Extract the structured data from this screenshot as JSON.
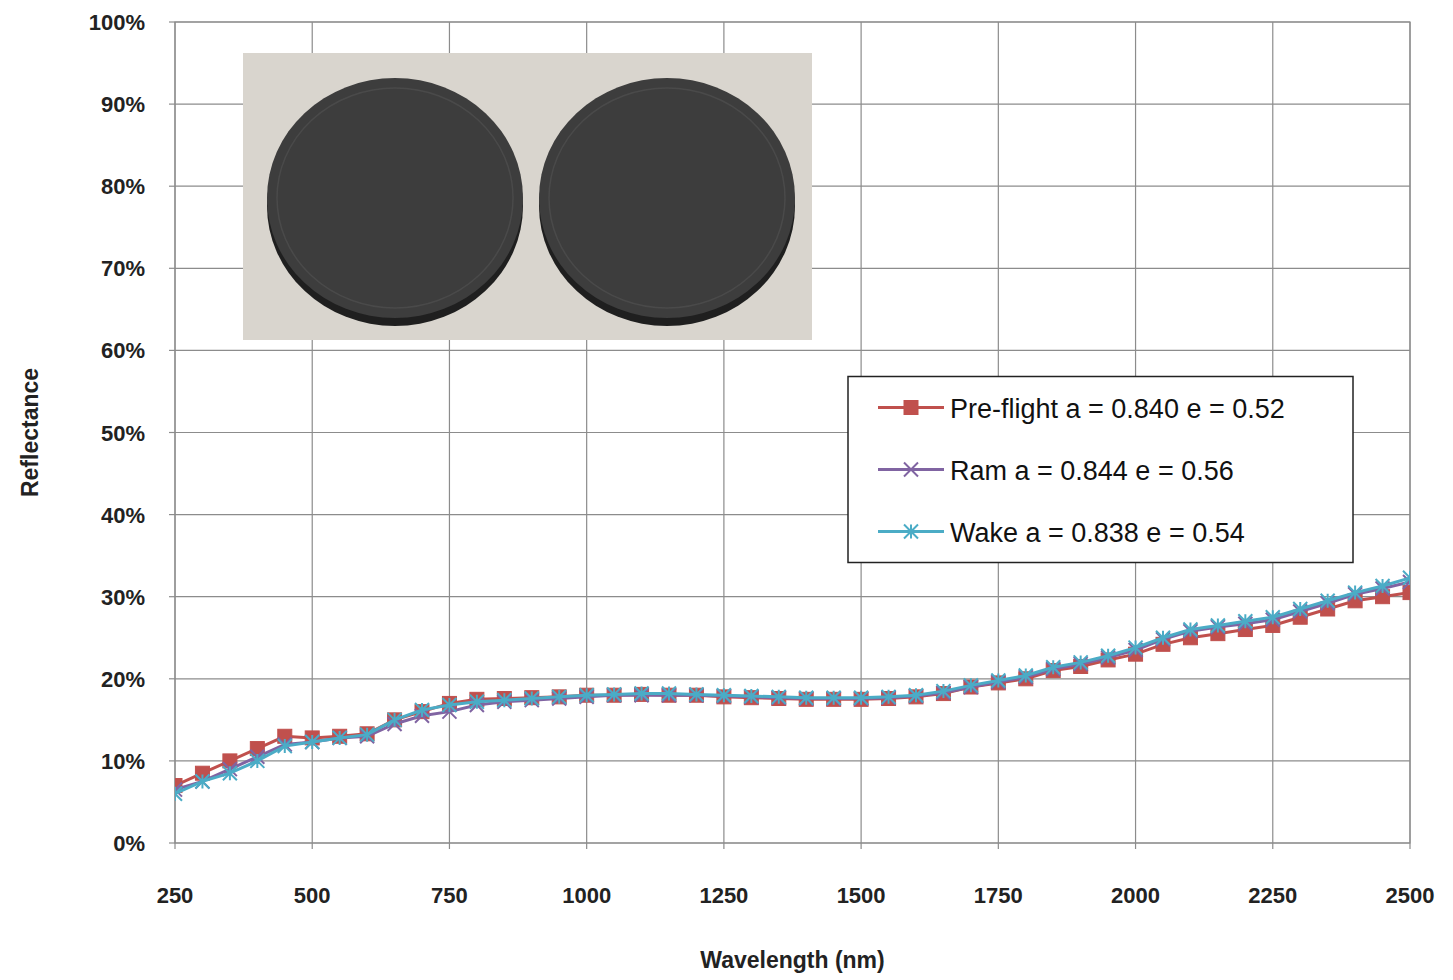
{
  "chart_data": {
    "type": "line",
    "x_label": "Wavelength (nm)",
    "y_label": "Reflectance",
    "xlim": [
      250,
      2500
    ],
    "xticks": [
      250,
      500,
      750,
      1000,
      1250,
      1500,
      1750,
      2000,
      2250,
      2500
    ],
    "ylim": [
      0,
      100
    ],
    "yticks": [
      {
        "value": 0,
        "label": "0%"
      },
      {
        "value": 10,
        "label": "10%"
      },
      {
        "value": 20,
        "label": "20%"
      },
      {
        "value": 30,
        "label": "30%"
      },
      {
        "value": 40,
        "label": "40%"
      },
      {
        "value": 50,
        "label": "50%"
      },
      {
        "value": 60,
        "label": "60%"
      },
      {
        "value": 70,
        "label": "70%"
      },
      {
        "value": 80,
        "label": "80%"
      },
      {
        "value": 90,
        "label": "90%"
      },
      {
        "value": 100,
        "label": "100%"
      }
    ],
    "grid": true,
    "legend": "right",
    "x": [
      250,
      300,
      350,
      400,
      450,
      500,
      550,
      600,
      650,
      700,
      750,
      800,
      850,
      900,
      950,
      1000,
      1050,
      1100,
      1150,
      1200,
      1250,
      1300,
      1350,
      1400,
      1450,
      1500,
      1550,
      1600,
      1650,
      1700,
      1750,
      1800,
      1850,
      1900,
      1950,
      2000,
      2050,
      2100,
      2150,
      2200,
      2250,
      2300,
      2350,
      2400,
      2450,
      2500
    ],
    "series": [
      {
        "name": "Pre-flight a = 0.840 e = 0.52",
        "color": "#c0504d",
        "marker": "square",
        "values": [
          7,
          8.5,
          10,
          11.5,
          13,
          12.8,
          13,
          13.3,
          15,
          16,
          17,
          17.5,
          17.6,
          17.7,
          17.8,
          18,
          18,
          18.1,
          18,
          18,
          17.8,
          17.7,
          17.6,
          17.5,
          17.5,
          17.5,
          17.6,
          17.8,
          18.2,
          19,
          19.5,
          20,
          21,
          21.5,
          22.3,
          23,
          24.2,
          25,
          25.5,
          26,
          26.5,
          27.5,
          28.5,
          29.5,
          30,
          30.5
        ]
      },
      {
        "name": "Ram a = 0.844 e = 0.56",
        "color": "#8064a2",
        "marker": "x",
        "values": [
          6.5,
          7.5,
          9,
          10.5,
          12,
          12.3,
          12.8,
          13,
          14.5,
          15.5,
          16,
          16.8,
          17.2,
          17.4,
          17.6,
          17.8,
          18,
          18,
          18,
          18,
          17.9,
          17.8,
          17.7,
          17.6,
          17.6,
          17.6,
          17.7,
          17.9,
          18.3,
          19,
          19.6,
          20.2,
          21.2,
          21.8,
          22.6,
          23.5,
          24.8,
          25.8,
          26.3,
          26.7,
          27.2,
          28.2,
          29.2,
          30.3,
          31,
          31.8
        ]
      },
      {
        "name": "Wake a = 0.838 e = 0.54",
        "color": "#4bacc6",
        "marker": "asterisk",
        "values": [
          6,
          7.5,
          8.5,
          10,
          11.8,
          12.3,
          12.8,
          13.2,
          15,
          16.2,
          16.8,
          17.2,
          17.4,
          17.6,
          17.8,
          18,
          18.1,
          18.2,
          18.2,
          18.1,
          18,
          17.9,
          17.8,
          17.7,
          17.7,
          17.7,
          17.8,
          18,
          18.5,
          19.2,
          19.8,
          20.4,
          21.4,
          22,
          22.8,
          23.8,
          25,
          26,
          26.5,
          27,
          27.5,
          28.5,
          29.5,
          30.5,
          31.3,
          32.3
        ]
      }
    ]
  }
}
